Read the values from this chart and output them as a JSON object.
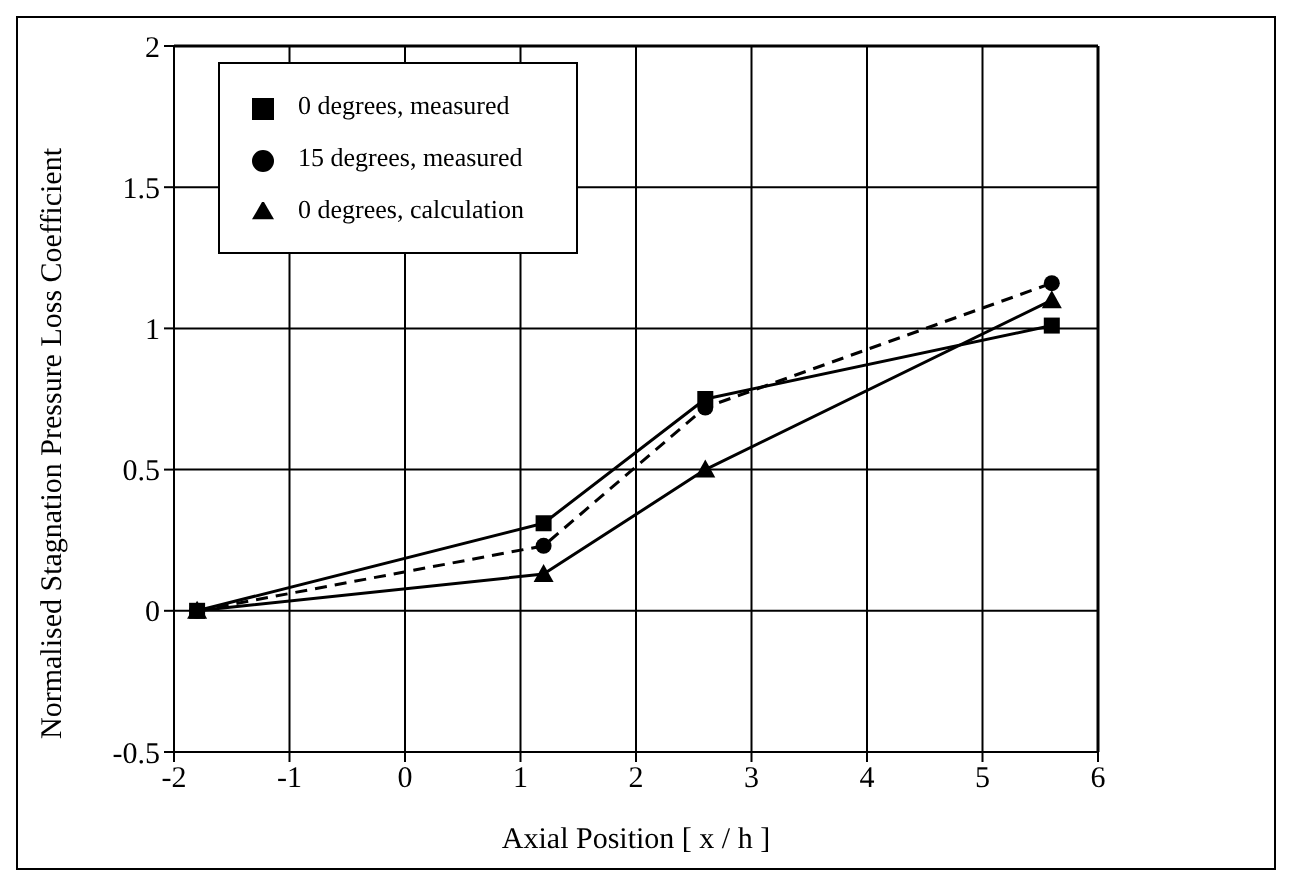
{
  "chart_data": {
    "type": "line",
    "xlabel": "Axial Position [ x / h ]",
    "ylabel": "Normalised Stagnation Pressure Loss Coefficient",
    "xlim": [
      -2,
      6
    ],
    "ylim": [
      -0.5,
      2
    ],
    "xticks": [
      -2,
      -1,
      0,
      1,
      2,
      3,
      4,
      5,
      6
    ],
    "yticks": [
      -0.5,
      0,
      0.5,
      1,
      1.5,
      2
    ],
    "grid": true,
    "legend": "top left",
    "series": [
      {
        "name": "0 degrees, measured",
        "color": "#000000",
        "marker": "square",
        "line_style": "solid",
        "x": [
          -1.8,
          1.2,
          2.6,
          5.6
        ],
        "values": [
          0,
          0.31,
          0.75,
          1.01
        ]
      },
      {
        "name": "15 degrees, measured",
        "color": "#000000",
        "marker": "circle",
        "line_style": "dashed",
        "x": [
          -1.8,
          1.2,
          2.6,
          5.6
        ],
        "values": [
          0,
          0.23,
          0.72,
          1.16
        ]
      },
      {
        "name": "0 degrees, calculation",
        "color": "#000000",
        "marker": "triangle",
        "line_style": "solid",
        "x": [
          -1.8,
          1.2,
          2.6,
          5.6
        ],
        "values": [
          0,
          0.13,
          0.5,
          1.1
        ]
      }
    ]
  }
}
